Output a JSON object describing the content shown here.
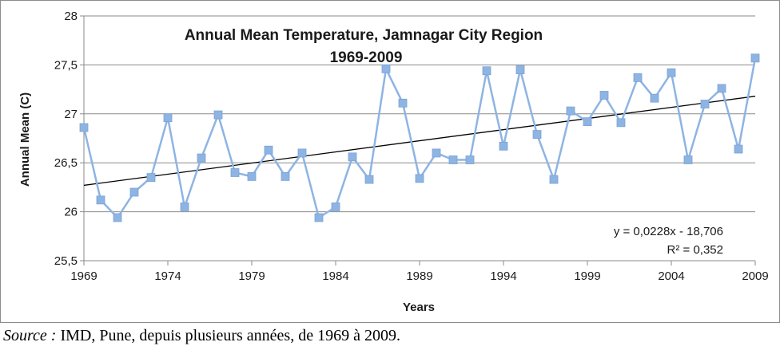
{
  "chart_data": {
    "type": "line",
    "title": "Annual Mean Temperature, Jamnagar City Region",
    "subtitle": "1969-2009",
    "xlabel": "Years",
    "ylabel": "Annual Mean  (C)",
    "xlim": [
      1969,
      2009
    ],
    "ylim": [
      25.5,
      28
    ],
    "x_ticks": [
      1969,
      1974,
      1979,
      1984,
      1989,
      1994,
      1999,
      2004,
      2009
    ],
    "x_tick_labels": [
      "1969",
      "1974",
      "1979",
      "1984",
      "1989",
      "1994",
      "1999",
      "2004",
      "2009"
    ],
    "y_ticks": [
      25.5,
      26,
      26.5,
      27,
      27.5,
      28
    ],
    "y_tick_labels": [
      "25,5",
      "26",
      "26,5",
      "27",
      "27,5",
      "28"
    ],
    "grid": "horizontal",
    "series_color": "#8eb4e3",
    "trend_color": "#000000",
    "x": [
      1969,
      1970,
      1971,
      1972,
      1973,
      1974,
      1975,
      1976,
      1977,
      1978,
      1979,
      1980,
      1981,
      1982,
      1983,
      1984,
      1985,
      1986,
      1987,
      1988,
      1989,
      1990,
      1991,
      1992,
      1993,
      1994,
      1995,
      1996,
      1997,
      1998,
      1999,
      2000,
      2001,
      2002,
      2003,
      2004,
      2005,
      2006,
      2007,
      2008,
      2009
    ],
    "series": [
      {
        "values": [
          26.86,
          26.12,
          25.94,
          26.2,
          26.35,
          26.96,
          26.05,
          26.55,
          26.99,
          26.4,
          26.36,
          26.63,
          26.36,
          26.6,
          25.94,
          26.05,
          26.56,
          26.33,
          27.46,
          27.11,
          26.34,
          26.6,
          26.53,
          26.53,
          27.44,
          26.67,
          27.45,
          26.79,
          26.33,
          27.03,
          26.92,
          27.19,
          26.91,
          27.37,
          27.16,
          27.42,
          26.53,
          27.1,
          27.26,
          26.64,
          27.57
        ]
      }
    ],
    "trendline": {
      "type": "linear",
      "start": [
        1969,
        26.27
      ],
      "end": [
        2009,
        27.18
      ],
      "equation": "y = 0,0228x - 18,706",
      "r_squared": "R² = 0,352"
    }
  },
  "source": {
    "label": "Source :",
    "text": " IMD, Pune, depuis plusieurs années, de 1969 à 2009."
  }
}
